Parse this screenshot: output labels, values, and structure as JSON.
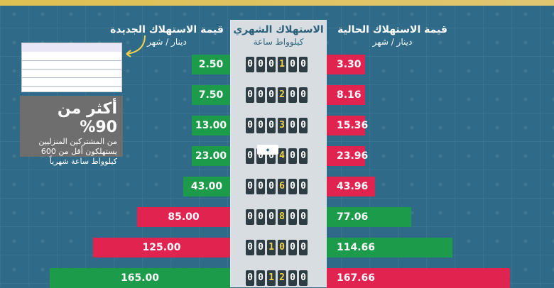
{
  "headers": {
    "left_title": "قيمة الاستهلاك الجديدة",
    "left_unit": "دينار / شهر",
    "center_title": "الاستهلاك الشهري",
    "center_unit": "كيلوواط ساعة",
    "right_title": "قيمة الاستهلاك الحالية",
    "right_unit": "دينار / شهر"
  },
  "note": {
    "big": "أكثر من 90%",
    "line1": "من المشتركين المنزليين",
    "line2": "يستهلكون أقل من 600",
    "line3": "كيلوواط ساعة شهرياً"
  },
  "colors": {
    "green": "#1c9b4a",
    "red": "#e1234f",
    "center": "#d8dde2"
  },
  "chart_data": {
    "type": "bar",
    "categories": [
      "100",
      "200",
      "300",
      "400",
      "600",
      "800",
      "1000",
      "1200"
    ],
    "series": [
      {
        "name": "قيمة الاستهلاك الجديدة",
        "values": [
          2.5,
          7.5,
          13.0,
          23.0,
          43.0,
          85.0,
          125.0,
          165.0
        ]
      },
      {
        "name": "قيمة الاستهلاك الحالية",
        "values": [
          3.3,
          8.16,
          15.36,
          23.96,
          43.96,
          77.06,
          114.66,
          167.66
        ]
      }
    ],
    "meter_digits": [
      "000100",
      "000200",
      "000300",
      "000400",
      "000600",
      "000800",
      "001000",
      "001200"
    ],
    "labels_left": [
      "2.50",
      "7.50",
      "13.00",
      "23.00",
      "43.00",
      "85.00",
      "125.00",
      "165.00"
    ],
    "labels_right": [
      "3.30",
      "8.16",
      "15.36",
      "23.96",
      "43.96",
      "77.06",
      "114.66",
      "167.66"
    ],
    "ylabel": "",
    "xlabel": "",
    "title": ""
  }
}
